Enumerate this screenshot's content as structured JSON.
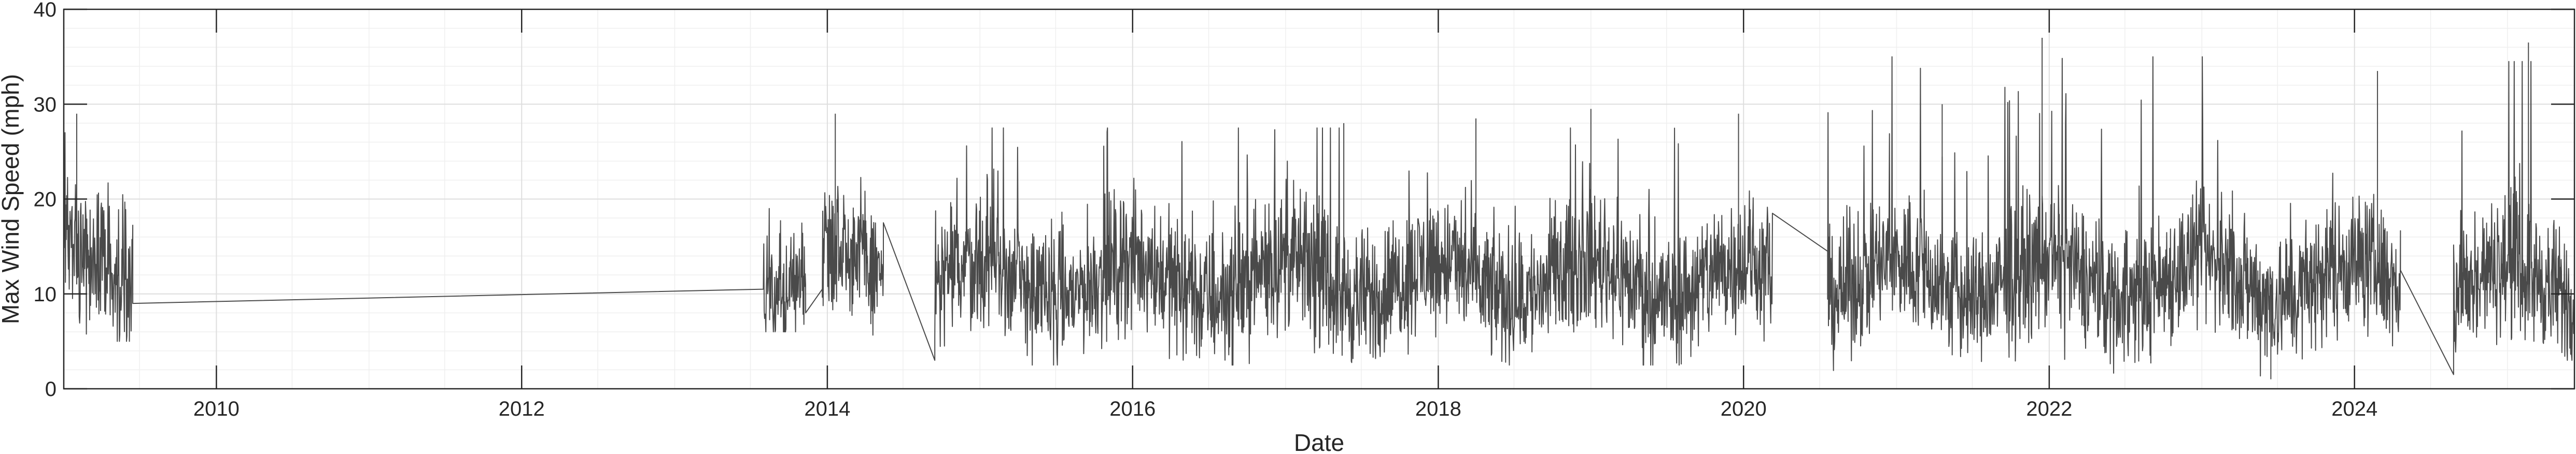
{
  "chart_data": {
    "type": "line",
    "title": "",
    "xlabel": "Date",
    "ylabel": "Max Wind Speed (mph)",
    "xlim": [
      "2009-01-01",
      "2025-06-10"
    ],
    "ylim": [
      0,
      40
    ],
    "xticks": [
      "2010",
      "2012",
      "2014",
      "2016",
      "2018",
      "2020",
      "2022",
      "2024"
    ],
    "yticks": [
      0,
      10,
      20,
      30,
      40
    ],
    "grid": true,
    "minor_grid": true,
    "series_color": "#4a4a4a",
    "sampling": "daily maximum; observations shown as continuous line with straight connectors across data gaps",
    "segments": [
      {
        "start": "2009-01-01",
        "end": "2009-06-15",
        "mean": 13.5,
        "spread": 5.5,
        "max": 29.0,
        "min": 5.0
      },
      {
        "start": "2009-06-15",
        "end": "2013-08-01",
        "connector": true,
        "from": 9.0,
        "to": 10.5
      },
      {
        "start": "2013-08-01",
        "end": "2013-11-10",
        "mean": 10.5,
        "spread": 4.0,
        "max": 21.0,
        "min": 6.0
      },
      {
        "start": "2013-11-10",
        "end": "2013-12-20",
        "connector": true,
        "from": 8.0,
        "to": 10.5
      },
      {
        "start": "2013-12-20",
        "end": "2014-05-15",
        "mean": 13.5,
        "spread": 5.0,
        "max": 29.0,
        "min": 5.0
      },
      {
        "start": "2014-05-15",
        "end": "2014-09-15",
        "connector": true,
        "from": 17.5,
        "to": 3.0
      },
      {
        "start": "2014-09-15",
        "end": "2020-03-10",
        "mean": 11.5,
        "spread": 5.0,
        "max": 29.5,
        "min": 2.5
      },
      {
        "start": "2020-03-10",
        "end": "2020-07-20",
        "connector": true,
        "from": 18.5,
        "to": 14.5
      },
      {
        "start": "2020-07-20",
        "end": "2024-04-20",
        "mean": 11.5,
        "spread": 5.0,
        "max": 37.0,
        "min": 0.5
      },
      {
        "start": "2024-04-20",
        "end": "2024-08-25",
        "connector": true,
        "from": 12.5,
        "to": 1.5
      },
      {
        "start": "2024-08-25",
        "end": "2025-06-10",
        "mean": 11.0,
        "spread": 5.0,
        "max": 36.5,
        "min": 3.0
      }
    ],
    "peaks": [
      {
        "date": "2009-02-01",
        "value": 29.0
      },
      {
        "date": "2014-01-20",
        "value": 29.0
      },
      {
        "date": "2017-05-20",
        "value": 28.0
      },
      {
        "date": "2018-04-01",
        "value": 28.5
      },
      {
        "date": "2019-01-01",
        "value": 29.5
      },
      {
        "date": "2019-12-20",
        "value": 29.0
      },
      {
        "date": "2021-04-20",
        "value": 30.0
      },
      {
        "date": "2021-12-15",
        "value": 37.0
      },
      {
        "date": "2023-06-15",
        "value": 1.0
      },
      {
        "date": "2024-02-25",
        "value": 33.5
      },
      {
        "date": "2025-02-20",
        "value": 36.5
      }
    ]
  }
}
